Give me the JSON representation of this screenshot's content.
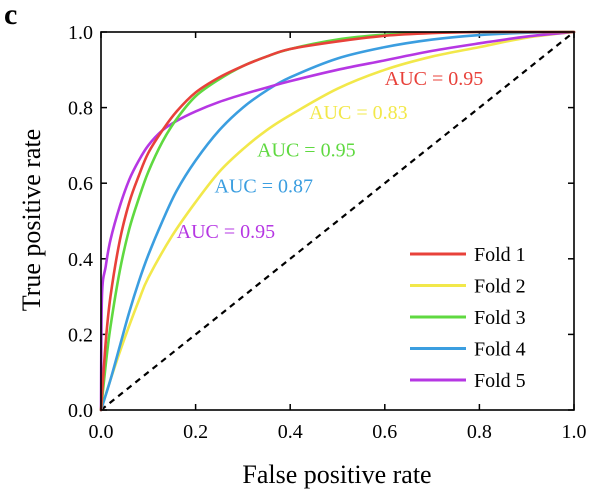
{
  "chart_data": {
    "type": "line",
    "panel_label": "c",
    "title": "",
    "xlabel": "False positive rate",
    "ylabel": "True positive rate",
    "xlim": [
      0,
      1
    ],
    "ylim": [
      0,
      1
    ],
    "xticks": [
      0.0,
      0.2,
      0.4,
      0.6,
      0.8,
      1.0
    ],
    "yticks": [
      0.0,
      0.2,
      0.4,
      0.6,
      0.8,
      1.0
    ],
    "xtick_labels": [
      "0.0",
      "0.2",
      "0.4",
      "0.6",
      "0.8",
      "1.0"
    ],
    "ytick_labels": [
      "0.0",
      "0.2",
      "0.4",
      "0.6",
      "0.8",
      "1.0"
    ],
    "grid": false,
    "legend_position": "bottom-right",
    "series": [
      {
        "name": "Fold 1",
        "color": "#e8413a",
        "auc_label": "AUC = 0.95",
        "x": [
          0,
          0.01,
          0.02,
          0.04,
          0.06,
          0.08,
          0.1,
          0.13,
          0.16,
          0.2,
          0.25,
          0.3,
          0.35,
          0.4,
          0.5,
          0.6,
          0.7,
          0.8,
          0.9,
          1.0
        ],
        "y": [
          0,
          0.18,
          0.3,
          0.45,
          0.55,
          0.62,
          0.68,
          0.74,
          0.79,
          0.84,
          0.88,
          0.91,
          0.935,
          0.955,
          0.975,
          0.99,
          0.997,
          1.0,
          1.0,
          1.0
        ]
      },
      {
        "name": "Fold 2",
        "color": "#f2e84a",
        "auc_label": "AUC = 0.83",
        "x": [
          0,
          0.02,
          0.05,
          0.08,
          0.1,
          0.15,
          0.2,
          0.25,
          0.3,
          0.35,
          0.4,
          0.5,
          0.6,
          0.7,
          0.8,
          0.9,
          1.0
        ],
        "y": [
          0,
          0.08,
          0.19,
          0.29,
          0.35,
          0.46,
          0.55,
          0.63,
          0.69,
          0.74,
          0.78,
          0.85,
          0.9,
          0.935,
          0.96,
          0.985,
          1.0
        ]
      },
      {
        "name": "Fold 3",
        "color": "#5fd940",
        "auc_label": "AUC = 0.95",
        "x": [
          0,
          0.01,
          0.02,
          0.04,
          0.06,
          0.08,
          0.1,
          0.13,
          0.16,
          0.2,
          0.25,
          0.3,
          0.35,
          0.4,
          0.5,
          0.6,
          0.7,
          0.8,
          0.9,
          1.0
        ],
        "y": [
          0,
          0.12,
          0.22,
          0.37,
          0.48,
          0.56,
          0.63,
          0.71,
          0.77,
          0.83,
          0.875,
          0.91,
          0.935,
          0.955,
          0.98,
          0.993,
          0.998,
          1.0,
          1.0,
          1.0
        ]
      },
      {
        "name": "Fold 4",
        "color": "#3b9ee0",
        "auc_label": "AUC = 0.87",
        "x": [
          0,
          0.02,
          0.04,
          0.06,
          0.08,
          0.1,
          0.13,
          0.16,
          0.2,
          0.25,
          0.3,
          0.35,
          0.4,
          0.5,
          0.6,
          0.7,
          0.8,
          0.9,
          1.0
        ],
        "y": [
          0,
          0.08,
          0.17,
          0.26,
          0.34,
          0.41,
          0.5,
          0.58,
          0.66,
          0.74,
          0.8,
          0.845,
          0.88,
          0.93,
          0.96,
          0.98,
          0.992,
          0.998,
          1.0
        ]
      },
      {
        "name": "Fold 5",
        "color": "#b637e3",
        "auc_label": "AUC = 0.95",
        "x": [
          0,
          0.002,
          0.01,
          0.02,
          0.04,
          0.06,
          0.08,
          0.1,
          0.13,
          0.16,
          0.2,
          0.25,
          0.3,
          0.35,
          0.4,
          0.5,
          0.6,
          0.7,
          0.8,
          0.9,
          1.0
        ],
        "y": [
          0,
          0.3,
          0.38,
          0.45,
          0.54,
          0.61,
          0.66,
          0.7,
          0.74,
          0.765,
          0.79,
          0.815,
          0.835,
          0.853,
          0.87,
          0.9,
          0.925,
          0.95,
          0.97,
          0.988,
          1.0
        ]
      }
    ],
    "reference_line": {
      "x": [
        0,
        1
      ],
      "y": [
        0,
        1
      ],
      "style": "dashed",
      "color": "#000000"
    },
    "auc_annotations": [
      {
        "text": "AUC = 0.95",
        "color": "#e8413a",
        "series": "Fold 1",
        "at": [
          0.6,
          0.86
        ]
      },
      {
        "text": "AUC = 0.83",
        "color": "#f2e84a",
        "series": "Fold 2",
        "at": [
          0.44,
          0.77
        ]
      },
      {
        "text": "AUC = 0.95",
        "color": "#5fd940",
        "series": "Fold 3",
        "at": [
          0.33,
          0.67
        ]
      },
      {
        "text": "AUC = 0.87",
        "color": "#3b9ee0",
        "series": "Fold 4",
        "at": [
          0.24,
          0.575
        ]
      },
      {
        "text": "AUC = 0.95",
        "color": "#b637e3",
        "series": "Fold 5",
        "at": [
          0.16,
          0.455
        ]
      }
    ]
  }
}
